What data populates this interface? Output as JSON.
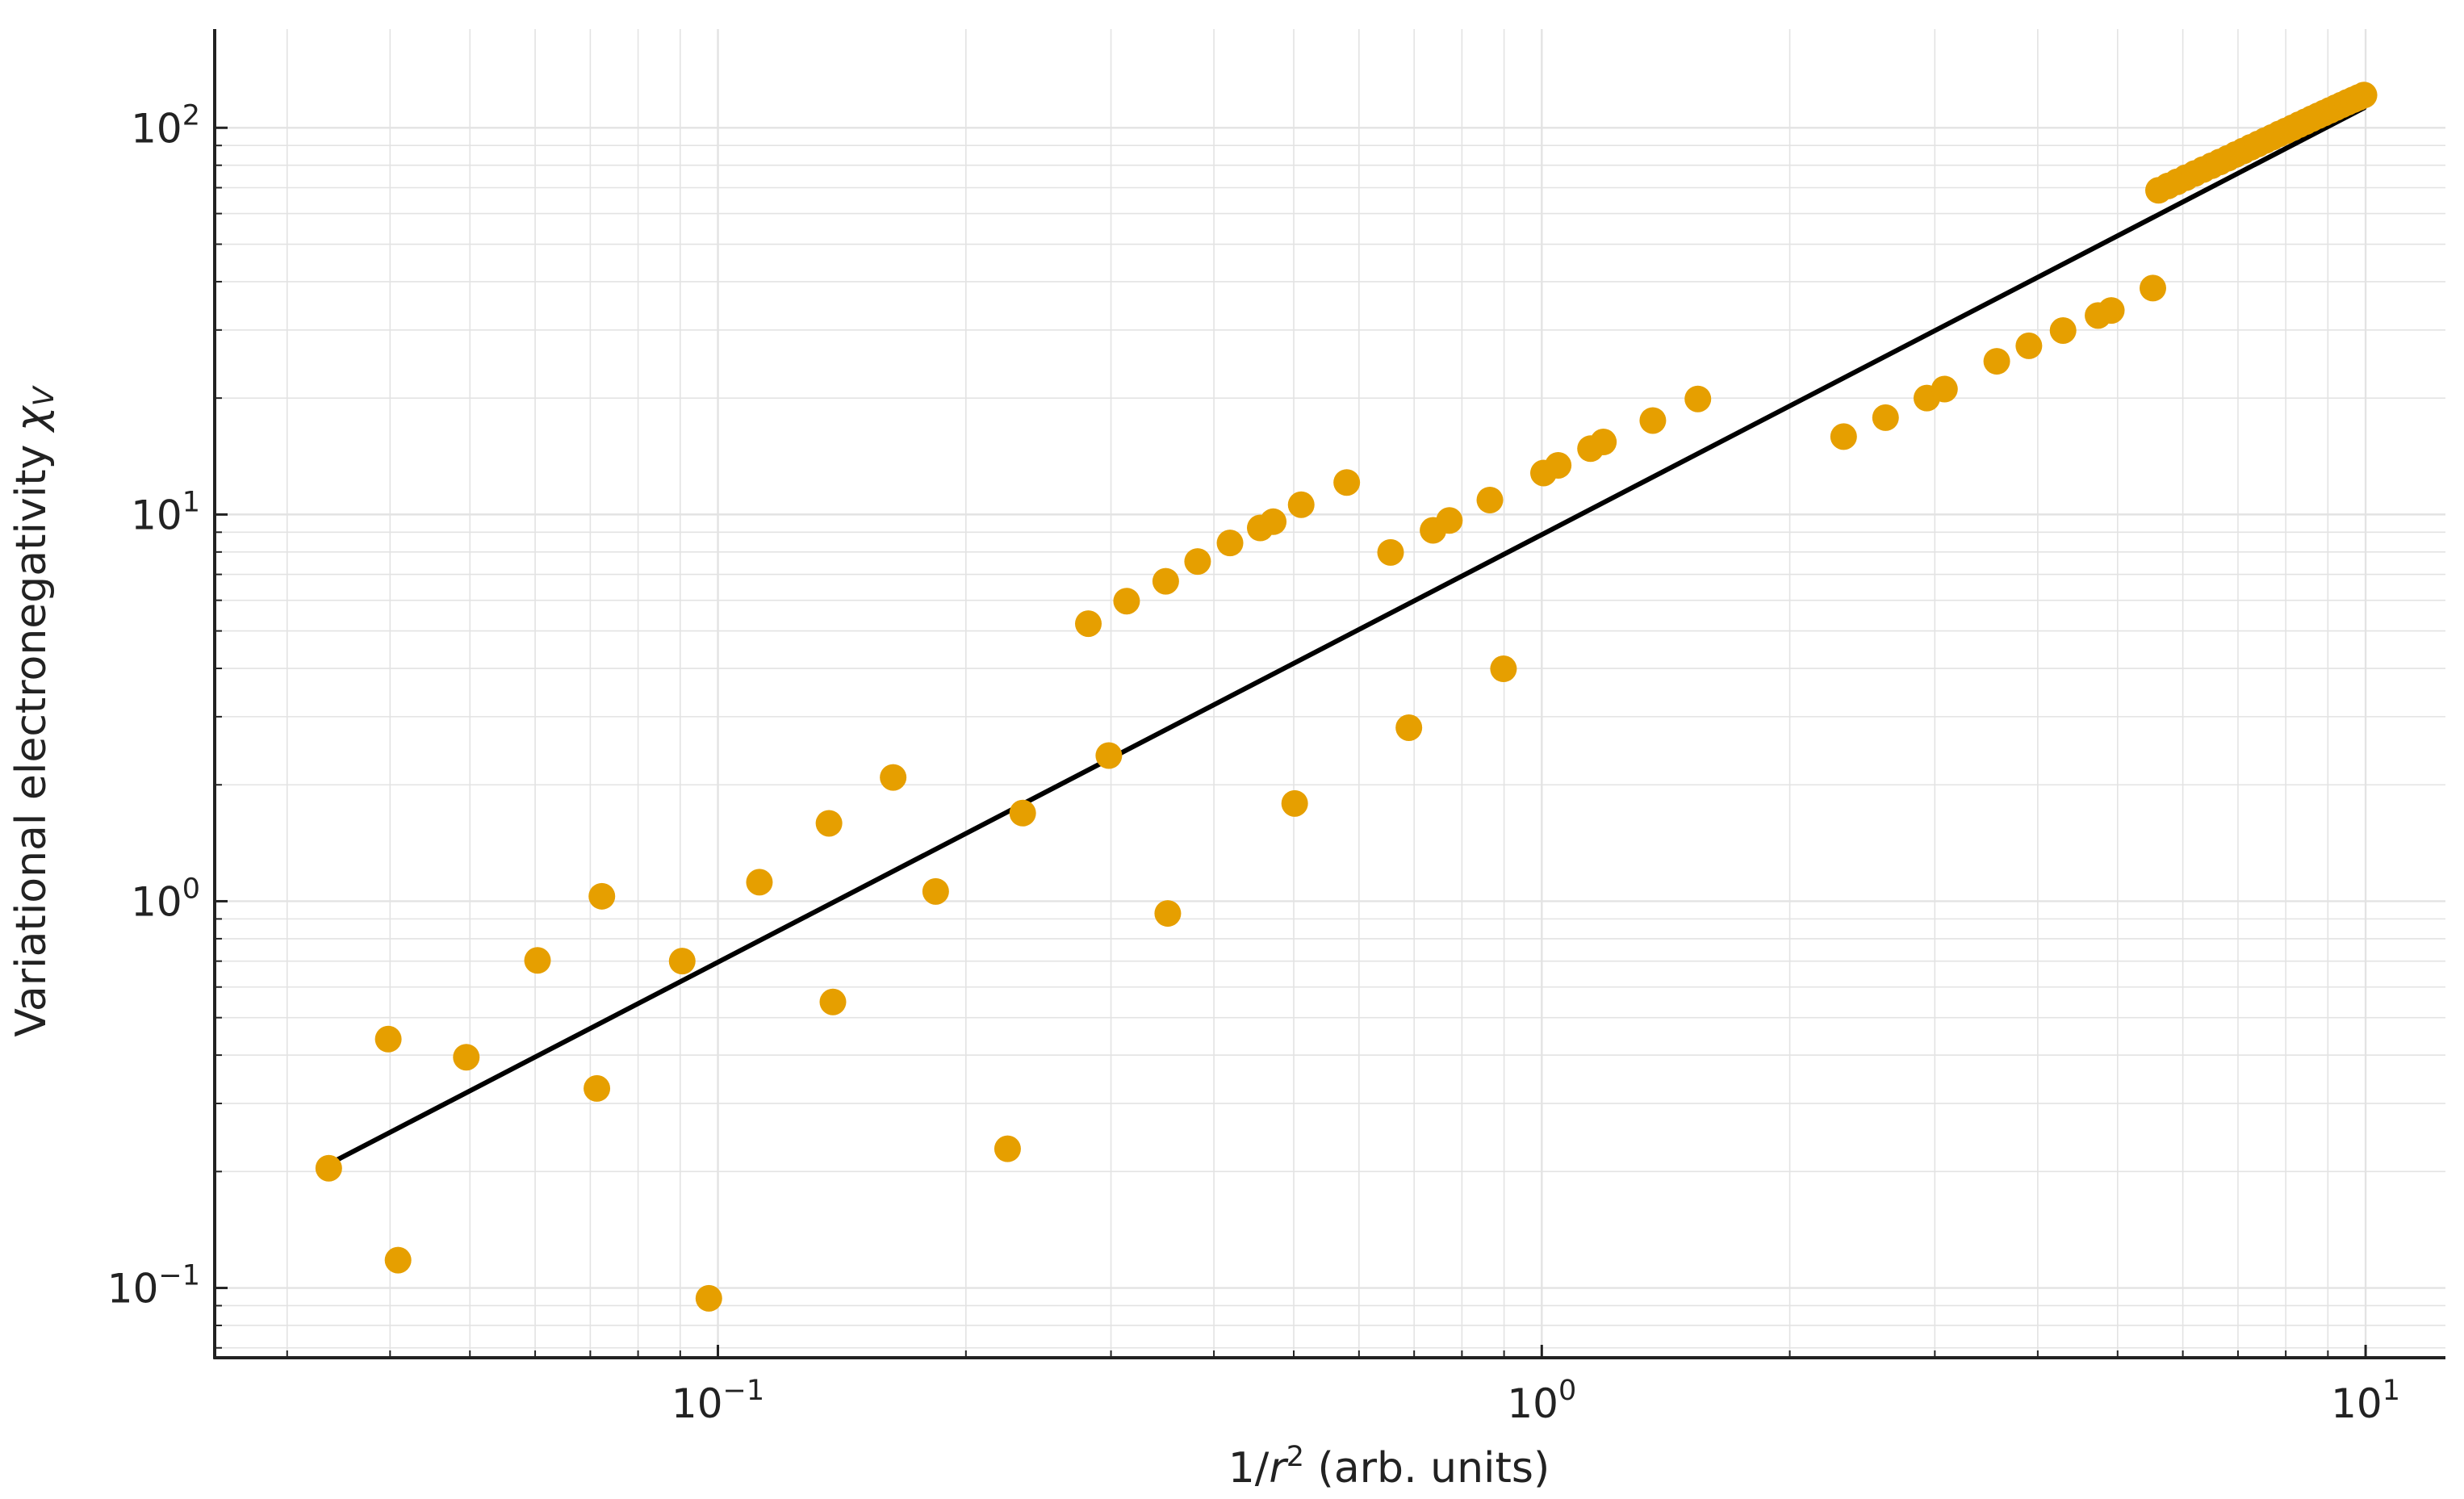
{
  "chart_data": {
    "type": "scatter",
    "title": "",
    "xlabel": {
      "prefix": "1/",
      "var": "r",
      "sup": "2",
      "suffix": " (arb. units)"
    },
    "ylabel": {
      "prefix": "Variational electronegativity ",
      "var": "χ",
      "sub": "V"
    },
    "xscale": "log",
    "yscale": "log",
    "xlim": [
      0.0245,
      12.5
    ],
    "ylim": [
      0.066,
      180
    ],
    "grid": true,
    "colors": {
      "points": "#e69f00",
      "fit_line": "#000000",
      "grid": "#e3e3e3",
      "axis": "#222222"
    },
    "x_ticks": [
      {
        "value": 0.1,
        "base": "10",
        "exp": "−1"
      },
      {
        "value": 1,
        "base": "10",
        "exp": "0"
      },
      {
        "value": 10,
        "base": "10",
        "exp": "1"
      }
    ],
    "y_ticks": [
      {
        "value": 0.1,
        "base": "10",
        "exp": "−1"
      },
      {
        "value": 1,
        "base": "10",
        "exp": "0"
      },
      {
        "value": 10,
        "base": "10",
        "exp": "1"
      },
      {
        "value": 100,
        "base": "10",
        "exp": "2"
      }
    ],
    "fit_line": {
      "x": [
        0.0337,
        9.96
      ],
      "y": [
        0.209,
        112.6
      ]
    },
    "series": [
      {
        "points": [
          [
            0.0337,
            0.204
          ],
          [
            0.0398,
            0.44
          ],
          [
            0.0409,
            0.118
          ],
          [
            0.0495,
            0.395
          ],
          [
            0.0604,
            0.703
          ],
          [
            0.0713,
            0.328
          ],
          [
            0.0723,
            1.03
          ],
          [
            0.0905,
            0.7
          ],
          [
            0.0975,
            0.094
          ],
          [
            0.1123,
            1.12
          ],
          [
            0.1364,
            1.59
          ],
          [
            0.1379,
            0.549
          ],
          [
            0.1632,
            2.09
          ],
          [
            0.1838,
            1.06
          ],
          [
            0.2247,
            0.229
          ],
          [
            0.2344,
            1.69
          ],
          [
            0.2816,
            5.22
          ],
          [
            0.2982,
            2.38
          ],
          [
            0.3134,
            5.97
          ],
          [
            0.3496,
            6.72
          ],
          [
            0.3516,
            0.93
          ],
          [
            0.3822,
            7.56
          ],
          [
            0.4184,
            8.44
          ],
          [
            0.4553,
            9.23
          ],
          [
            0.4721,
            9.58
          ],
          [
            0.5013,
            1.79
          ],
          [
            0.5105,
            10.6
          ],
          [
            0.5798,
            12.1
          ],
          [
            0.6554,
            7.98
          ],
          [
            0.6898,
            2.81
          ],
          [
            0.738,
            9.1
          ],
          [
            0.7725,
            9.65
          ],
          [
            0.865,
            10.9
          ],
          [
            0.8986,
            3.99
          ],
          [
            1.005,
            12.8
          ],
          [
            1.047,
            13.4
          ],
          [
            1.146,
            14.8
          ],
          [
            1.188,
            15.4
          ],
          [
            1.364,
            17.5
          ],
          [
            1.547,
            19.9
          ],
          [
            2.325,
            15.9
          ],
          [
            2.614,
            17.8
          ],
          [
            2.934,
            20.0
          ],
          [
            3.082,
            21.1
          ],
          [
            3.567,
            24.9
          ],
          [
            3.902,
            27.3
          ],
          [
            4.293,
            29.9
          ],
          [
            4.734,
            32.7
          ],
          [
            4.913,
            33.7
          ],
          [
            5.518,
            38.5
          ],
          [
            5.606,
            68.9
          ],
          [
            5.755,
            70.7
          ],
          [
            5.905,
            72.5
          ],
          [
            6.051,
            74.3
          ],
          [
            6.205,
            76.2
          ],
          [
            6.353,
            78.0
          ],
          [
            6.505,
            79.8
          ],
          [
            6.655,
            81.6
          ],
          [
            6.805,
            83.4
          ],
          [
            6.955,
            85.3
          ],
          [
            7.105,
            87.1
          ],
          [
            7.255,
            89.0
          ],
          [
            7.405,
            90.8
          ],
          [
            7.555,
            92.7
          ],
          [
            7.705,
            94.5
          ],
          [
            7.855,
            96.4
          ],
          [
            8.005,
            98.2
          ],
          [
            8.155,
            100.0
          ],
          [
            8.305,
            101.9
          ],
          [
            8.455,
            103.7
          ],
          [
            8.605,
            105.6
          ],
          [
            8.755,
            107.4
          ],
          [
            8.905,
            109.2
          ],
          [
            9.055,
            111.0
          ],
          [
            9.205,
            112.8
          ],
          [
            9.355,
            114.6
          ],
          [
            9.505,
            116.4
          ],
          [
            9.655,
            118.1
          ],
          [
            9.805,
            119.8
          ],
          [
            9.955,
            121.5
          ]
        ]
      }
    ]
  }
}
